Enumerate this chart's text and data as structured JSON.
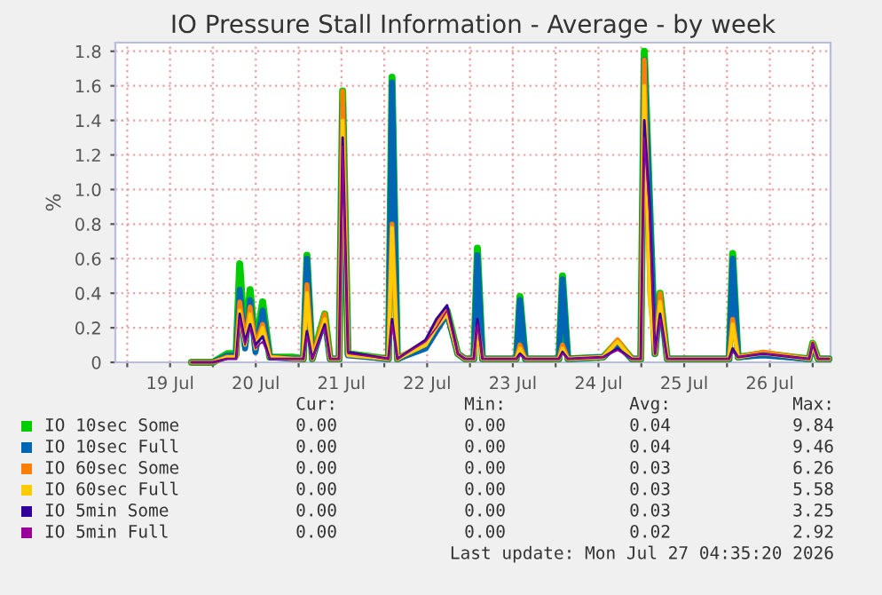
{
  "chart_data": {
    "type": "line",
    "title": "IO Pressure Stall Information - Average - by week",
    "ylabel": "%",
    "x": [
      "2026-07-19T18:00",
      "2026-07-20T00:00",
      "2026-07-20T04:00",
      "2026-07-20T06:30",
      "2026-07-20T07:30",
      "2026-07-20T09:00",
      "2026-07-20T10:25",
      "2026-07-20T11:55",
      "2026-07-20T13:55",
      "2026-07-20T15:55",
      "2026-07-20T22:25",
      "2026-07-21T01:20",
      "2026-07-21T02:20",
      "2026-07-21T03:50",
      "2026-07-21T07:20",
      "2026-07-21T08:50",
      "2026-07-21T11:20",
      "2026-07-21T12:20",
      "2026-07-21T13:50",
      "2026-07-22T01:10",
      "2026-07-22T02:10",
      "2026-07-22T03:40",
      "2026-07-22T11:35",
      "2026-07-22T14:35",
      "2026-07-22T17:35",
      "2026-07-22T20:35",
      "2026-07-22T22:35",
      "2026-07-23T01:05",
      "2026-07-23T02:05",
      "2026-07-23T03:30",
      "2026-07-23T13:00",
      "2026-07-23T14:00",
      "2026-07-23T15:30",
      "2026-07-24T00:55",
      "2026-07-24T01:55",
      "2026-07-24T03:25",
      "2026-07-24T13:20",
      "2026-07-24T17:20",
      "2026-07-24T21:20",
      "2026-07-24T23:50",
      "2026-07-25T00:50",
      "2026-07-25T02:20",
      "2026-07-25T03:50",
      "2026-07-25T05:15",
      "2026-07-25T07:15",
      "2026-07-26T00:35",
      "2026-07-26T01:35",
      "2026-07-26T03:05",
      "2026-07-26T10:05",
      "2026-07-26T23:00",
      "2026-07-27T00:00",
      "2026-07-27T01:30",
      "2026-07-27T04:35"
    ],
    "series": [
      {
        "name": "IO 10sec Some",
        "color": "#00cc00",
        "values": [
          0,
          0,
          0.05,
          0.05,
          0.57,
          0.1,
          0.42,
          0.08,
          0.35,
          0.03,
          0.03,
          0.02,
          0.62,
          0.02,
          0.28,
          0.02,
          0.02,
          1.57,
          0.05,
          0.02,
          1.65,
          0.02,
          0.1,
          0.2,
          0.3,
          0.05,
          0.02,
          0.02,
          0.66,
          0.02,
          0.02,
          0.38,
          0.02,
          0.02,
          0.5,
          0.02,
          0.03,
          0.12,
          0.02,
          0.02,
          1.8,
          0.92,
          0.05,
          0.4,
          0.02,
          0.02,
          0.63,
          0.03,
          0.05,
          0.02,
          0.11,
          0.02,
          0.02
        ]
      },
      {
        "name": "IO 10sec Full",
        "color": "#0066b3",
        "values": [
          0,
          0,
          0.04,
          0.04,
          0.42,
          0.08,
          0.36,
          0.06,
          0.3,
          0.03,
          0.02,
          0.02,
          0.6,
          0.02,
          0.25,
          0.02,
          0.02,
          1.5,
          0.04,
          0.02,
          1.62,
          0.02,
          0.08,
          0.18,
          0.28,
          0.05,
          0.02,
          0.02,
          0.62,
          0.02,
          0.02,
          0.36,
          0.02,
          0.02,
          0.48,
          0.02,
          0.03,
          0.1,
          0.02,
          0.02,
          1.75,
          0.9,
          0.05,
          0.38,
          0.02,
          0.02,
          0.6,
          0.03,
          0.04,
          0.02,
          0.1,
          0.02,
          0.02
        ]
      },
      {
        "name": "IO 60sec Some",
        "color": "#ff8000",
        "values": [
          0,
          0,
          0.03,
          0.03,
          0.35,
          0.12,
          0.32,
          0.1,
          0.22,
          0.03,
          0.02,
          0.02,
          0.45,
          0.02,
          0.28,
          0.02,
          0.02,
          1.57,
          0.05,
          0.02,
          0.8,
          0.02,
          0.12,
          0.22,
          0.3,
          0.05,
          0.02,
          0.02,
          0.2,
          0.02,
          0.02,
          0.1,
          0.02,
          0.02,
          0.1,
          0.02,
          0.03,
          0.13,
          0.02,
          0.02,
          1.75,
          0.4,
          0.05,
          0.4,
          0.02,
          0.02,
          0.25,
          0.03,
          0.06,
          0.02,
          0.11,
          0.02,
          0.02
        ]
      },
      {
        "name": "IO 60sec Full",
        "color": "#ffcc00",
        "values": [
          0,
          0,
          0.03,
          0.03,
          0.3,
          0.1,
          0.28,
          0.08,
          0.2,
          0.03,
          0.02,
          0.02,
          0.4,
          0.02,
          0.25,
          0.02,
          0.02,
          1.4,
          0.04,
          0.02,
          0.78,
          0.02,
          0.1,
          0.2,
          0.28,
          0.05,
          0.02,
          0.02,
          0.18,
          0.02,
          0.02,
          0.08,
          0.02,
          0.02,
          0.08,
          0.02,
          0.03,
          0.12,
          0.02,
          0.02,
          1.6,
          0.35,
          0.05,
          0.35,
          0.02,
          0.02,
          0.22,
          0.03,
          0.05,
          0.02,
          0.1,
          0.02,
          0.02
        ]
      },
      {
        "name": "IO 5min Some",
        "color": "#330099",
        "values": [
          0,
          0,
          0.02,
          0.02,
          0.28,
          0.12,
          0.22,
          0.1,
          0.15,
          0.02,
          0.02,
          0.02,
          0.18,
          0.02,
          0.22,
          0.02,
          0.02,
          1.3,
          0.06,
          0.02,
          0.25,
          0.02,
          0.13,
          0.25,
          0.33,
          0.05,
          0.02,
          0.02,
          0.25,
          0.02,
          0.02,
          0.05,
          0.02,
          0.02,
          0.06,
          0.02,
          0.03,
          0.08,
          0.02,
          0.02,
          1.4,
          0.9,
          0.05,
          0.28,
          0.02,
          0.02,
          0.08,
          0.03,
          0.05,
          0.02,
          0.11,
          0.02,
          0.02
        ]
      },
      {
        "name": "IO 5min Full",
        "color": "#990099",
        "values": [
          0,
          0,
          0.02,
          0.02,
          0.25,
          0.1,
          0.2,
          0.08,
          0.12,
          0.02,
          0.02,
          0.02,
          0.15,
          0.02,
          0.2,
          0.02,
          0.02,
          1.25,
          0.05,
          0.02,
          0.22,
          0.02,
          0.12,
          0.2,
          0.3,
          0.05,
          0.02,
          0.02,
          0.22,
          0.02,
          0.02,
          0.04,
          0.02,
          0.02,
          0.05,
          0.02,
          0.03,
          0.07,
          0.02,
          0.02,
          1.3,
          0.85,
          0.05,
          0.25,
          0.02,
          0.02,
          0.06,
          0.03,
          0.05,
          0.02,
          0.11,
          0.02,
          0.02
        ]
      }
    ],
    "xlim": [
      "2026-07-18T20:40",
      "2026-07-27T05:00"
    ],
    "xticks": [
      {
        "value": "2026-07-19T00:00",
        "label": null
      },
      {
        "value": "2026-07-19T12:00",
        "label": "19 Jul"
      },
      {
        "value": "2026-07-20T00:00",
        "label": null
      },
      {
        "value": "2026-07-20T12:00",
        "label": "20 Jul"
      },
      {
        "value": "2026-07-21T00:00",
        "label": null
      },
      {
        "value": "2026-07-21T12:00",
        "label": "21 Jul"
      },
      {
        "value": "2026-07-22T00:00",
        "label": null
      },
      {
        "value": "2026-07-22T12:00",
        "label": "22 Jul"
      },
      {
        "value": "2026-07-23T00:00",
        "label": null
      },
      {
        "value": "2026-07-23T12:00",
        "label": "23 Jul"
      },
      {
        "value": "2026-07-24T00:00",
        "label": null
      },
      {
        "value": "2026-07-24T12:00",
        "label": "24 Jul"
      },
      {
        "value": "2026-07-25T00:00",
        "label": null
      },
      {
        "value": "2026-07-25T12:00",
        "label": "25 Jul"
      },
      {
        "value": "2026-07-26T00:00",
        "label": null
      },
      {
        "value": "2026-07-26T12:00",
        "label": "26 Jul"
      },
      {
        "value": "2026-07-27T00:00",
        "label": null
      }
    ],
    "ylim": [
      0,
      1.85
    ],
    "yticks": [
      0,
      0.2,
      0.4,
      0.6,
      0.8,
      {
        "value": 1,
        "label": "1.0"
      },
      1.2,
      1.4,
      1.6,
      1.8
    ],
    "grid": true,
    "legend": "bottom",
    "annotations": [
      "Cur:",
      "Min:",
      "Avg:",
      "Max:",
      "0.00",
      "0.00",
      "0.04",
      "9.84",
      "0.00",
      "0.00",
      "0.04",
      "9.46",
      "0.00",
      "0.00",
      "0.03",
      "6.26",
      "0.00",
      "0.00",
      "0.03",
      "5.58",
      "0.00",
      "0.00",
      "0.03",
      "3.25",
      "0.00",
      "0.00",
      "0.02",
      "2.92",
      "Last update: Mon Jul 27 04:35:20 2026"
    ]
  }
}
